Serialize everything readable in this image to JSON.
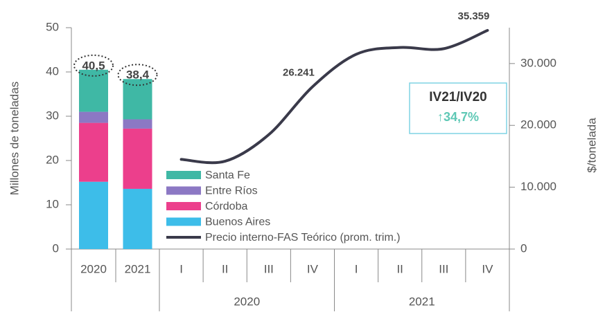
{
  "chart_data": {
    "type": "bar_line",
    "y_label": "Millones de toneladas",
    "y2_label": "$/tonelada",
    "categories": [
      "2020",
      "2021",
      "I",
      "II",
      "III",
      "IV",
      "I",
      "II",
      "III",
      "IV"
    ],
    "groups": [
      "2020",
      "2021"
    ],
    "ylim": [
      0,
      50
    ],
    "yticks": [
      0,
      10,
      20,
      30,
      40,
      50
    ],
    "y2lim": [
      0,
      35800
    ],
    "y2ticks": [
      0,
      {
        "value": 10000,
        "label": "10.000"
      },
      {
        "value": 20000,
        "label": "20.000"
      },
      {
        "value": 30000,
        "label": "30.000"
      }
    ],
    "series": [
      {
        "name": "Santa Fe",
        "color": "#3fb8a5",
        "stack": "bars",
        "values": [
          9.5,
          9.1,
          null,
          null,
          null,
          null,
          null,
          null,
          null,
          null
        ]
      },
      {
        "name": "Entre Ríos",
        "color": "#8c78c4",
        "stack": "bars",
        "values": [
          2.5,
          2.1,
          null,
          null,
          null,
          null,
          null,
          null,
          null,
          null
        ]
      },
      {
        "name": "Córdoba",
        "color": "#ec3f8c",
        "stack": "bars",
        "values": [
          13.3,
          13.6,
          null,
          null,
          null,
          null,
          null,
          null,
          null,
          null
        ]
      },
      {
        "name": "Buenos Aires",
        "color": "#3dbde9",
        "stack": "bars",
        "values": [
          15.2,
          13.6,
          null,
          null,
          null,
          null,
          null,
          null,
          null,
          null
        ]
      },
      {
        "name": "Precio interno-FAS Teórico (prom. trim.)",
        "color": "#3a3a4a",
        "axis": "y2",
        "values": [
          null,
          null,
          14500,
          14200,
          18500,
          26241,
          31500,
          32600,
          32400,
          35359
        ],
        "value_labels": [
          null,
          null,
          null,
          null,
          null,
          "26.241",
          null,
          null,
          null,
          "35.359"
        ]
      }
    ],
    "totals": {
      "values": [
        40.5,
        38.4,
        null,
        null,
        null,
        null,
        null,
        null,
        null,
        null
      ],
      "value_labels": [
        "40,5",
        "38,4",
        null,
        null,
        null,
        null,
        null,
        null,
        null,
        null
      ]
    },
    "annotation": {
      "title": "IV21/IV20",
      "text": "↑34,7%"
    }
  }
}
